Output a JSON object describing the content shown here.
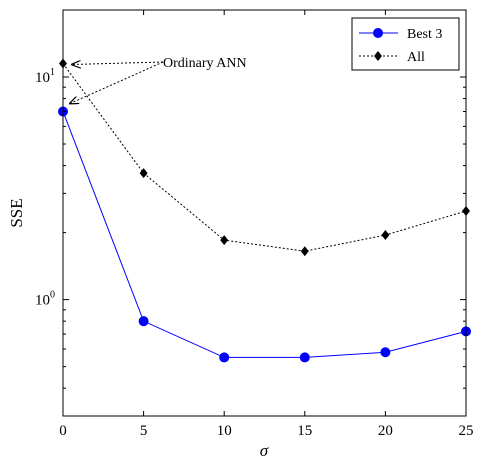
{
  "chart_data": {
    "type": "line",
    "xlabel": "σ",
    "ylabel": "SSE",
    "x": [
      0,
      5,
      10,
      15,
      20,
      25
    ],
    "xlim": [
      0,
      25
    ],
    "ylim": [
      0.3,
      20
    ],
    "yscale": "log",
    "xticks": [
      0,
      5,
      10,
      15,
      20,
      25
    ],
    "xtick_labels": [
      "0",
      "5",
      "10",
      "15",
      "20",
      "25"
    ],
    "yticks": [
      1,
      10
    ],
    "ytick_labels": [
      {
        "base": "10",
        "exp": "0"
      },
      {
        "base": "10",
        "exp": "1"
      }
    ],
    "series": [
      {
        "name": "Best 3",
        "color": "#0000ff",
        "line_style": "solid",
        "marker": "circle",
        "values": [
          7.0,
          0.8,
          0.55,
          0.55,
          0.58,
          0.72
        ]
      },
      {
        "name": "All",
        "color": "#000000",
        "line_style": "dotted",
        "marker": "diamond",
        "values": [
          11.5,
          3.7,
          1.85,
          1.65,
          1.95,
          2.5
        ]
      }
    ],
    "legend_position": "top-right",
    "annotation": {
      "text": "Ordinary ANN",
      "targets": [
        {
          "x": 0,
          "y": 11.5
        },
        {
          "x": 0,
          "y": 7.0
        }
      ]
    },
    "grid": false
  }
}
